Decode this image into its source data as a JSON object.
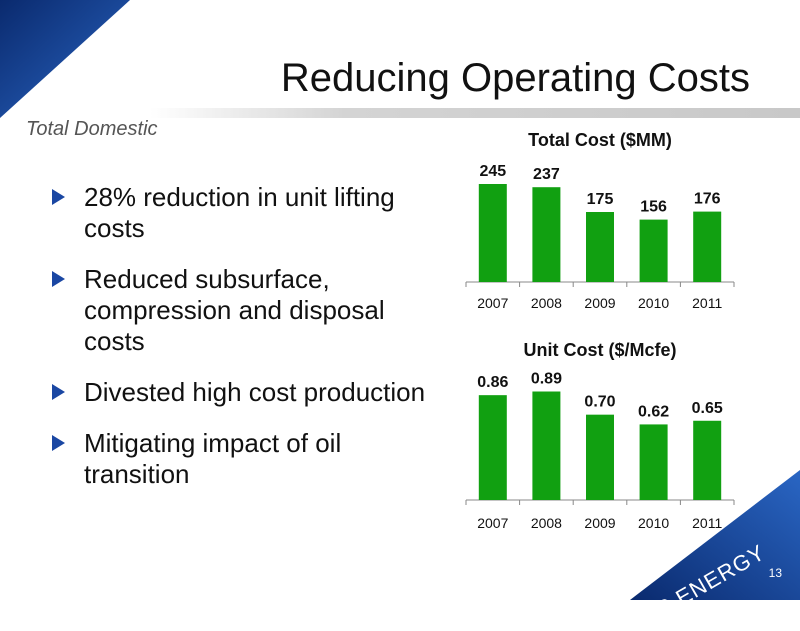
{
  "slide": {
    "title": "Reducing Operating Costs",
    "subtitle": "Total Domestic",
    "page_number": "13",
    "brand": "EP ENERGY"
  },
  "bullets": [
    "28% reduction in unit lifting costs",
    "Reduced subsurface, compression and disposal costs",
    "Divested high cost production",
    "Mitigating impact of oil transition"
  ],
  "colors": {
    "bar": "#11a011",
    "accent": "#1a47a3"
  },
  "chart_data": [
    {
      "type": "bar",
      "title": "Total Cost ($MM)",
      "categories": [
        "2007",
        "2008",
        "2009",
        "2010",
        "2011"
      ],
      "values": [
        245,
        237,
        175,
        156,
        176
      ],
      "labels": [
        "245",
        "237",
        "175",
        "156",
        "176"
      ],
      "ylim": [
        0,
        300
      ],
      "grid": false
    },
    {
      "type": "bar",
      "title": "Unit Cost ($/Mcfe)",
      "categories": [
        "2007",
        "2008",
        "2009",
        "2010",
        "2011"
      ],
      "values": [
        0.86,
        0.89,
        0.7,
        0.62,
        0.65
      ],
      "labels": [
        "0.86",
        "0.89",
        "0.70",
        "0.62",
        "0.65"
      ],
      "ylim": [
        0,
        1.05
      ],
      "grid": false
    }
  ]
}
